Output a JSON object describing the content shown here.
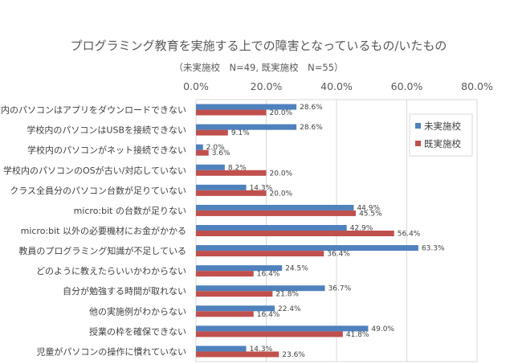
{
  "chart_data": {
    "type": "bar",
    "orientation": "horizontal",
    "title": "プログラミング教育を実施する上での障害となっているもの/いたもの",
    "subtitle": "（未実施校　N=49, 既実施校　N=55）",
    "xlim": [
      0,
      80
    ],
    "xticks": [
      "0.0%",
      "20.0%",
      "40.0%",
      "60.0%",
      "80.0%"
    ],
    "grid": true,
    "legend_position": "right",
    "categories": [
      "学校内のパソコンはアプリをダウンロードできない",
      "学校内のパソコンはUSBを接続できない",
      "学校内のパソコンがネット接続できない",
      "学校内のパソコンのOSが古い/対応していない",
      "クラス全員分のパソコン台数が足りていない",
      "micro:bit の台数が足りない",
      "micro:bit 以外の必要機材にお金がかかる",
      "教員のプログラミング知識が不足している",
      "どのように教えたらいいかわからない",
      "自分が勉強する時間が取れない",
      "他の実施例がわからない",
      "授業の枠を確保できない",
      "児童がパソコンの操作に慣れていない"
    ],
    "series": [
      {
        "name": "未実施校",
        "color": "#4F81BD",
        "values": [
          28.6,
          28.6,
          2.0,
          8.2,
          14.3,
          44.9,
          42.9,
          63.3,
          24.5,
          36.7,
          22.4,
          49.0,
          14.3
        ]
      },
      {
        "name": "既実施校",
        "color": "#C0504D",
        "values": [
          20.0,
          9.1,
          3.6,
          20.0,
          20.0,
          45.5,
          56.4,
          36.4,
          16.4,
          21.8,
          16.4,
          41.8,
          23.6
        ]
      }
    ]
  }
}
